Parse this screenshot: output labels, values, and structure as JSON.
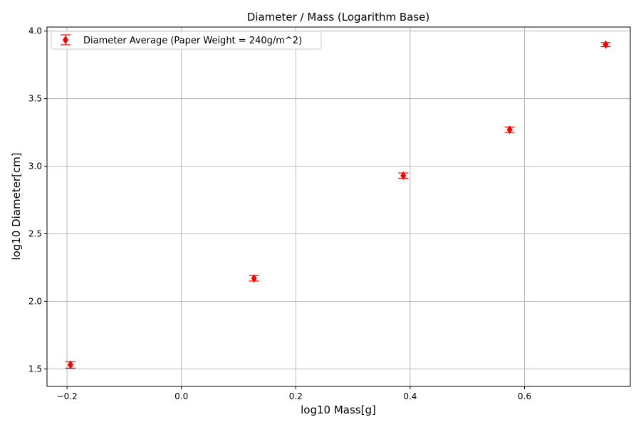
{
  "chart_data": {
    "type": "scatter",
    "title": "Diameter / Mass (Logarithm Base)",
    "xlabel": "log10 Mass[g]",
    "ylabel": "log10 Diameter[cm]",
    "xlim": [
      -0.235,
      0.785
    ],
    "ylim": [
      1.37,
      4.03
    ],
    "xticks": [
      -0.2,
      0.0,
      0.2,
      0.4,
      0.6
    ],
    "xtick_labels": [
      "−0.2",
      "0.0",
      "0.2",
      "0.4",
      "0.6"
    ],
    "yticks": [
      1.5,
      2.0,
      2.5,
      3.0,
      3.5,
      4.0
    ],
    "ytick_labels": [
      "1.5",
      "2.0",
      "2.5",
      "3.0",
      "3.5",
      "4.0"
    ],
    "grid": true,
    "legend_position": "top-left",
    "series": [
      {
        "name": "Diameter Average (Paper Weight = 240g/m^2)",
        "color": "#ff0000",
        "marker": "diamond",
        "x": [
          -0.194,
          0.127,
          0.388,
          0.574,
          0.742
        ],
        "y": [
          1.53,
          2.17,
          2.93,
          3.27,
          3.9
        ],
        "yerr": [
          0.025,
          0.02,
          0.02,
          0.02,
          0.015
        ]
      }
    ]
  }
}
